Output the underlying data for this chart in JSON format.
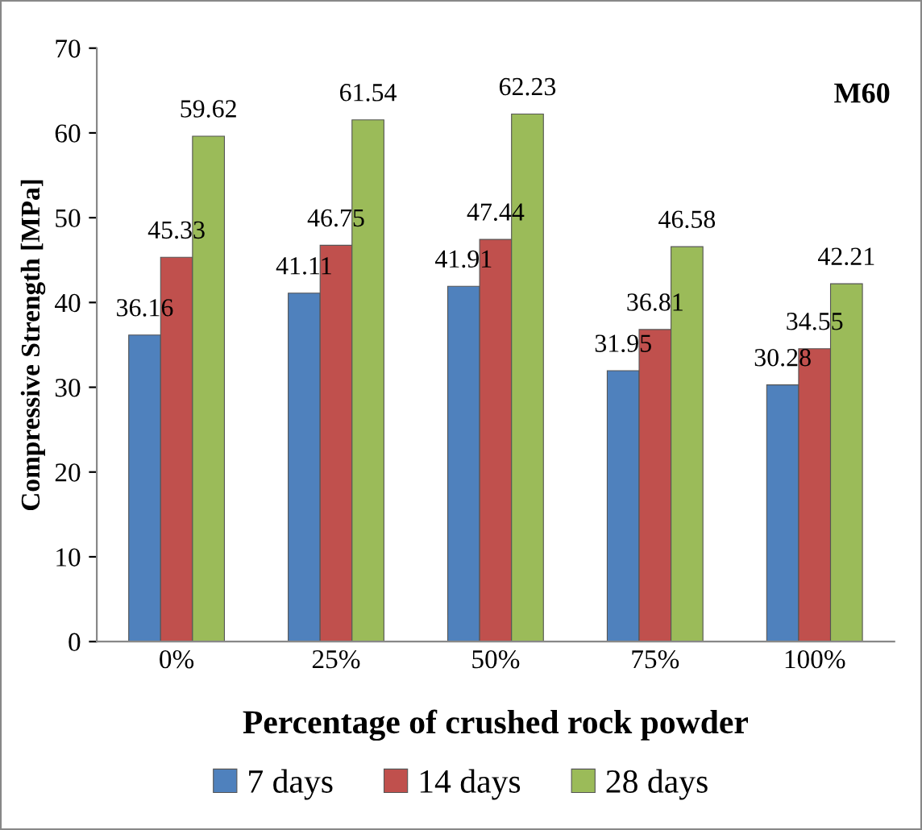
{
  "chart_data": {
    "type": "bar",
    "xlabel": "Percentage of crushed rock powder",
    "ylabel": "Compressive Strength [MPa]",
    "categories": [
      "0%",
      "25%",
      "50%",
      "75%",
      "100%"
    ],
    "series": [
      {
        "name": "7 days",
        "color": "#4f81bd",
        "values": [
          36.16,
          41.11,
          41.91,
          31.95,
          30.28
        ]
      },
      {
        "name": "14 days",
        "color": "#c0504d",
        "values": [
          45.33,
          46.75,
          47.44,
          36.81,
          34.55
        ]
      },
      {
        "name": "28 days",
        "color": "#9bbb59",
        "values": [
          59.62,
          61.54,
          62.23,
          46.58,
          42.21
        ]
      }
    ],
    "ylim": [
      0,
      70
    ],
    "yticks": [
      0,
      10,
      20,
      30,
      40,
      50,
      60,
      70
    ],
    "annotations": [
      "M60"
    ],
    "data_labels": true,
    "legend": "bottom",
    "grid": false
  }
}
